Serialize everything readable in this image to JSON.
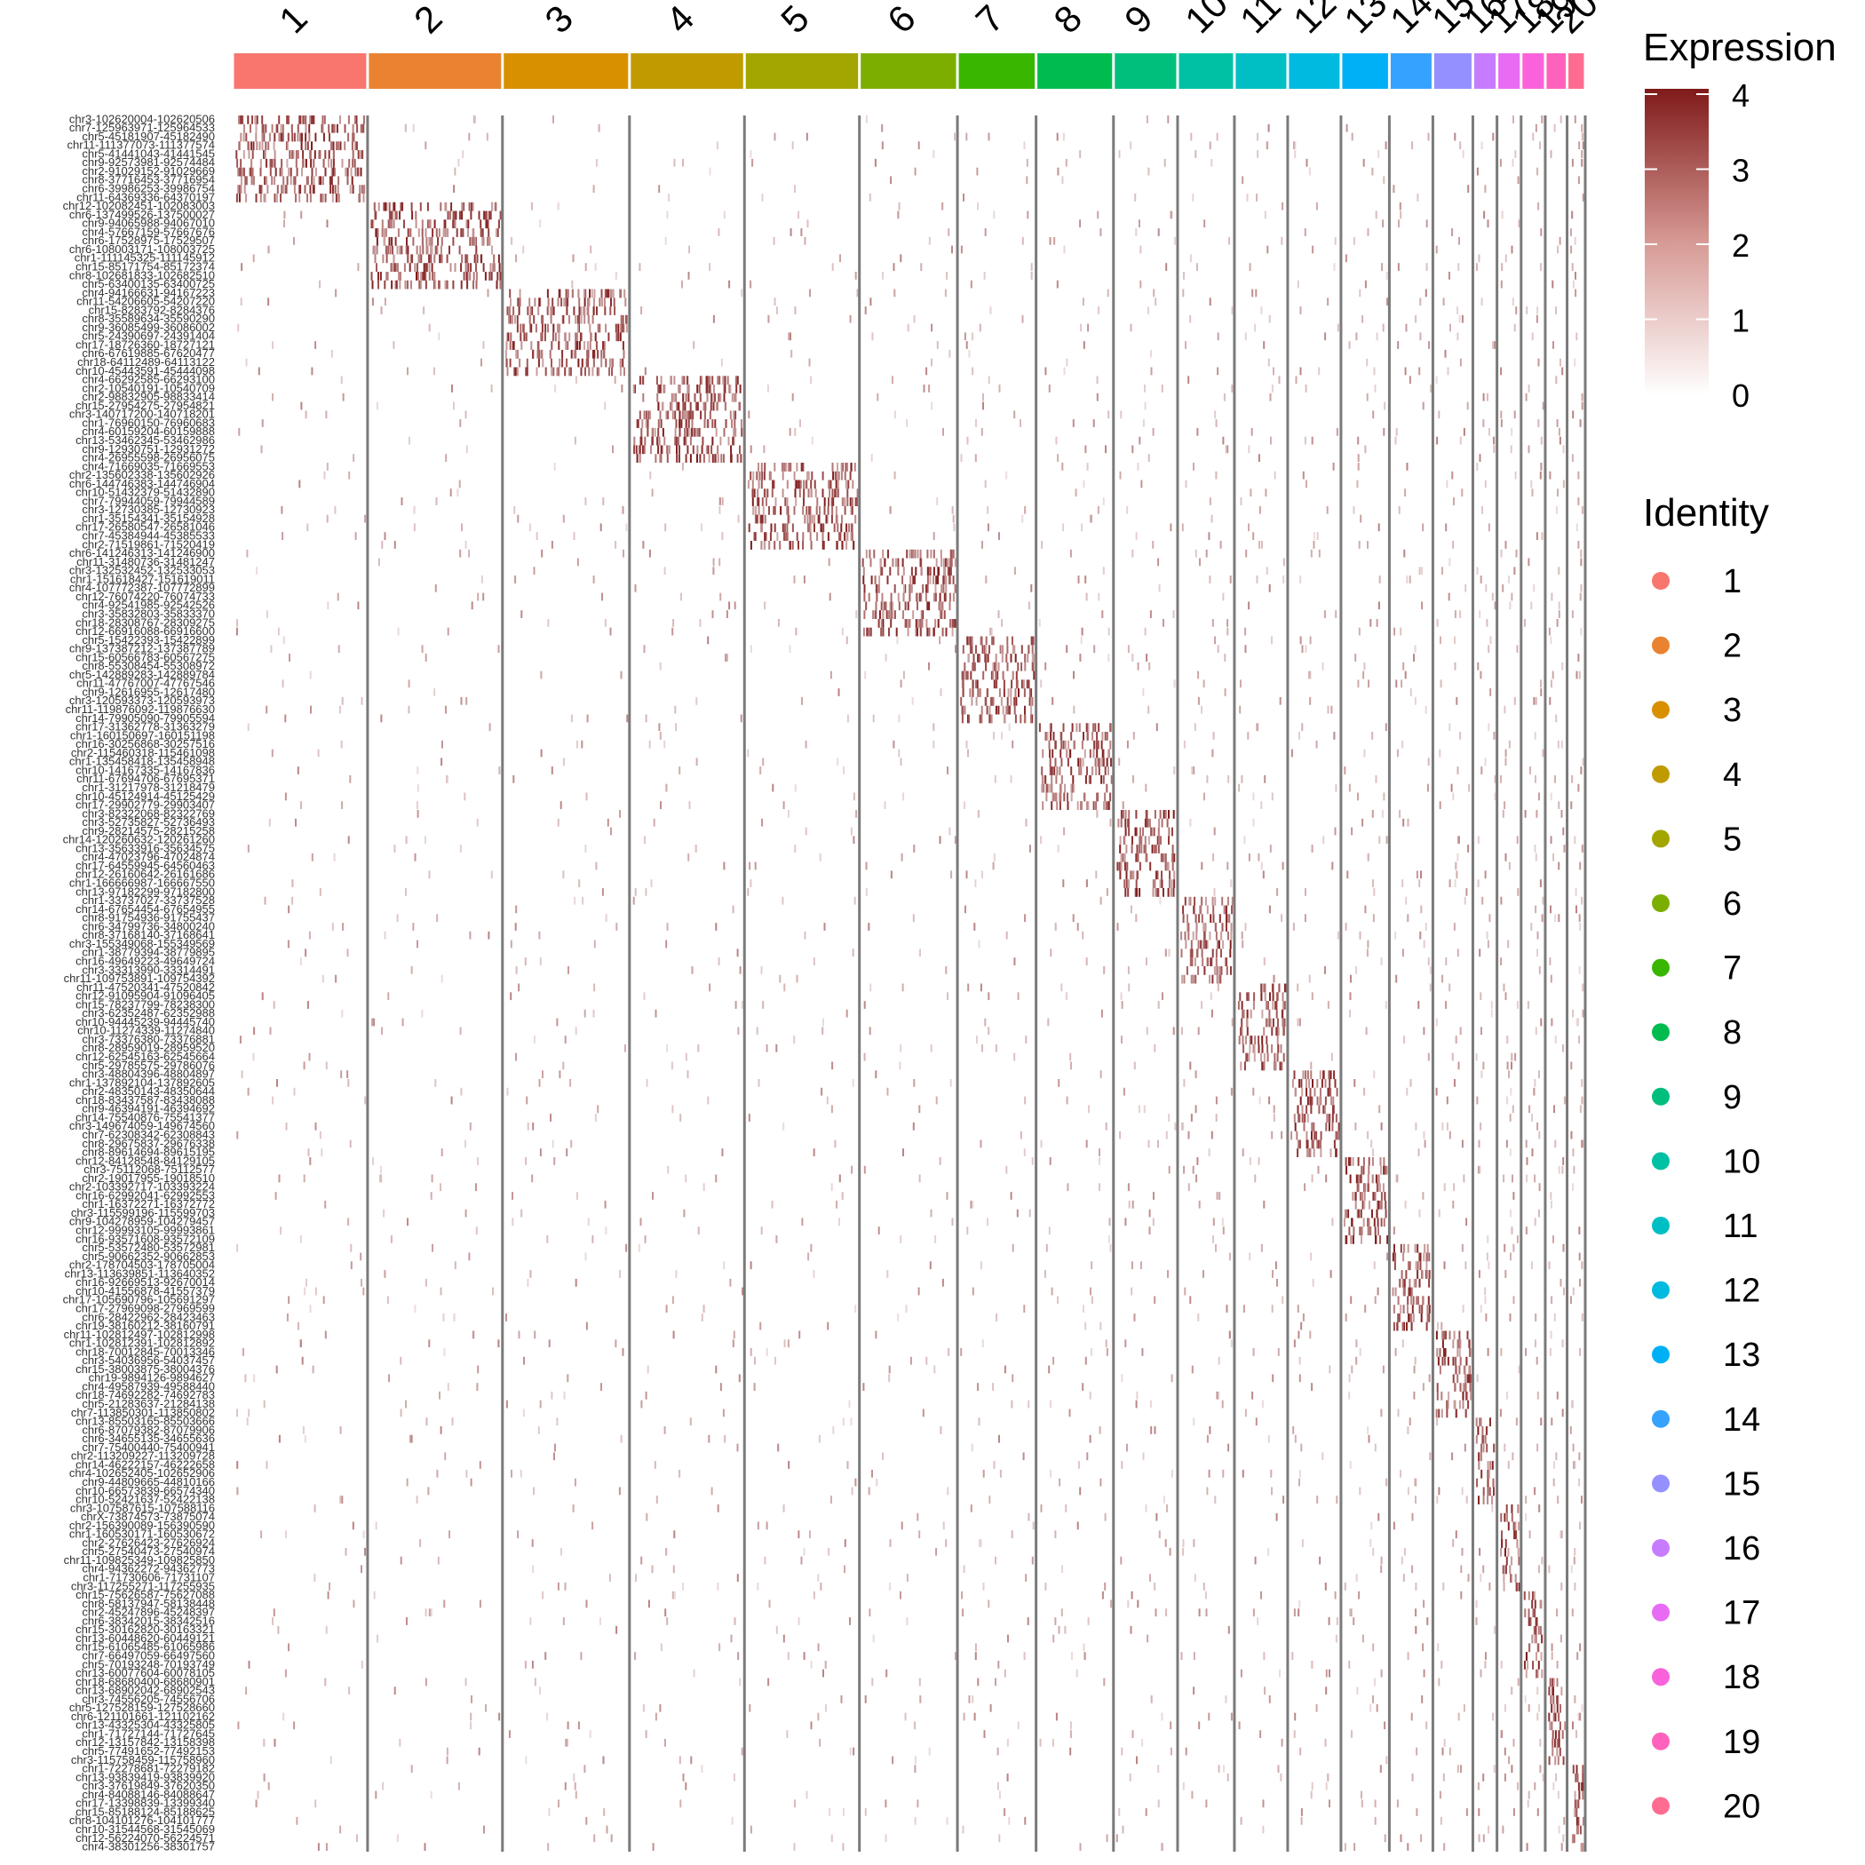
{
  "chart_data": {
    "type": "heatmap",
    "title": "",
    "xlabel": "",
    "ylabel": "",
    "clusters": [
      "1",
      "2",
      "3",
      "4",
      "5",
      "6",
      "7",
      "8",
      "9",
      "10",
      "11",
      "12",
      "13",
      "14",
      "15",
      "16",
      "17",
      "18",
      "19",
      "20"
    ],
    "cluster_colors": [
      "#F8766D",
      "#EA8331",
      "#D89000",
      "#C09B00",
      "#A3A500",
      "#7CAE00",
      "#39B600",
      "#00BB4E",
      "#00BF7D",
      "#00C1A3",
      "#00BFC4",
      "#00BAE0",
      "#00B0F6",
      "#35A2FF",
      "#9590FF",
      "#C77CFF",
      "#E76BF3",
      "#FA62DB",
      "#FF62BC",
      "#FF6C91"
    ],
    "cluster_cell_fractions": [
      0.0995,
      0.0995,
      0.0937,
      0.0848,
      0.0848,
      0.0723,
      0.058,
      0.0571,
      0.0473,
      0.0419,
      0.0393,
      0.0393,
      0.0357,
      0.0321,
      0.0295,
      0.0178,
      0.0178,
      0.0178,
      0.0161,
      0.0134
    ],
    "features_per_cluster": 10,
    "features": [
      "chr3-102620004-102620506",
      "chr7-125963971-125964533",
      "chr5-45181907-45182490",
      "chr11-111377073-111377574",
      "chr5-41441043-41441545",
      "chr9-92573981-92574484",
      "chr2-91029152-91029669",
      "chr8-37716453-37716954",
      "chr6-39986253-39986754",
      "chr11-64369336-64370197",
      "chr12-102082451-102083003",
      "chr6-137499526-137500027",
      "chr9-94065988-94067010",
      "chr4-57667159-57667676",
      "chr6-17528975-17529507",
      "chr6-108003171-108003725",
      "chr1-111145325-111145912",
      "chr15-85171754-85172374",
      "chr8-102681833-102682510",
      "chr5-63400135-63400725",
      "chr4-94166631-94167223",
      "chr11-54206605-54207220",
      "chr15-8283792-8284376",
      "chr8-35589634-35590290",
      "chr9-36085499-36086002",
      "chr5-24390697-24391404",
      "chr17-18726360-18727121",
      "chr6-67619885-67620477",
      "chr18-64112489-64113122",
      "chr10-45443591-45444098",
      "chr4-66292585-66293100",
      "chr2-10540191-10540709",
      "chr2-98832905-98833414",
      "chr15-27954275-27954821",
      "chr3-140717200-140718201",
      "chr1-76960150-76960683",
      "chr4-60159204-60159888",
      "chr13-53462345-53462986",
      "chr9-12930751-12931272",
      "chr4-26955598-26956075",
      "chr4-71669035-71669553",
      "chr2-135602338-135602926",
      "chr6-144746383-144746904",
      "chr10-51432379-51432890",
      "chr7-79944059-79944589",
      "chr3-12730385-12730923",
      "chr1-35154341-35154928",
      "chr17-26580547-26581046",
      "chr7-45384944-45385533",
      "chr2-71519861-71520419",
      "chr6-141246313-141246900",
      "chr11-31480736-31481247",
      "chr3-132532452-132533053",
      "chr1-151618427-151619011",
      "chr4-107772387-107772899",
      "chr12-76074220-76074733",
      "chr4-92541985-92542526",
      "chr3-35832803-35833370",
      "chr18-28308767-28309275",
      "chr12-66916088-66916600",
      "chr5-15422393-15422899",
      "chr9-137387212-137387789",
      "chr15-60566783-60567275",
      "chr8-55308454-55308972",
      "chr5-142889283-142889784",
      "chr11-47767007-47767546",
      "chr9-12616955-12617480",
      "chr3-120593373-120593973",
      "chr11-119876092-119876630",
      "chr14-79905090-79905594",
      "chr17-31362778-31363279",
      "chr1-160150697-160151198",
      "chr16-30256868-30257516",
      "chr2-115460318-115461098",
      "chr1-135458418-135458948",
      "chr10-14167335-14167836",
      "chr11-67694706-67695371",
      "chr1-31217978-31218479",
      "chr10-45124914-45125429",
      "chr17-29902779-29903407",
      "chr3-82322068-82322769",
      "chr3-52735827-52736493",
      "chr9-28214575-28215258",
      "chr14-120260632-120261260",
      "chr13-35633916-35634575",
      "chr4-47023796-47024874",
      "chr17-64559945-64560463",
      "chr12-26160642-26161686",
      "chr1-166666987-166667550",
      "chr13-97182299-97182800",
      "chr1-33737027-33737528",
      "chr14-67654454-67654955",
      "chr8-91754936-91755437",
      "chr6-34799736-34800240",
      "chr8-37168140-37168641",
      "chr3-155349068-155349569",
      "chr1-38779394-38779895",
      "chr16-49649223-49649724",
      "chr3-33313990-33314491",
      "chr11-109753891-109754392",
      "chr11-47520341-47520842",
      "chr12-91095904-91096405",
      "chr15-78237799-78238300",
      "chr3-62352487-62352988",
      "chr10-94445239-94445740",
      "chr10-11274339-11274840",
      "chr3-73376380-73376881",
      "chr8-28959019-28959520",
      "chr12-62545163-62545664",
      "chr5-29785575-29786076",
      "chr3-48804396-48804897",
      "chr1-137892104-137892605",
      "chr2-48350143-48350644",
      "chr18-83437587-83438088",
      "chr9-46394191-46394692",
      "chr14-75540876-75541377",
      "chr3-149674059-149674560",
      "chr7-62308342-62308843",
      "chr8-29675837-29676338",
      "chr8-89614694-89615195",
      "chr12-84128548-84129105",
      "chr3-75112068-75112577",
      "chr2-19017955-19018510",
      "chr2-103392717-103393224",
      "chr16-62992041-62992553",
      "chr1-16372271-16372772",
      "chr3-115599196-115599703",
      "chr9-104278959-104279457",
      "chr12-99993105-99993861",
      "chr16-93571608-93572109",
      "chr5-53572480-53572981",
      "chr5-90662352-90662853",
      "chr2-178704503-178705004",
      "chr13-113639851-113640352",
      "chr16-92669513-92670014",
      "chr10-41556878-41557379",
      "chr17-105690796-105691297",
      "chr17-27969098-27969599",
      "chr6-28422962-28423463",
      "chr19-38160212-38160791",
      "chr11-102812497-102812998",
      "chr1-102812391-102812892",
      "chr18-70012845-70013346",
      "chr3-54036956-54037457",
      "chr15-38003875-38004376",
      "chr19-9894126-9894627",
      "chr4-49587939-49588440",
      "chr18-74692282-74692783",
      "chr5-21283637-21284138",
      "chr7-113850301-113850802",
      "chr13-85503165-85503666",
      "chr6-87079382-87079906",
      "chr6-34655135-34655636",
      "chr7-75400440-75400941",
      "chr2-113209227-113209728",
      "chr14-46222157-46222658",
      "chr4-102652405-102652906",
      "chr9-44809665-44810166",
      "chr10-66573839-66574340",
      "chr10-52421637-52422138",
      "chr3-107587615-107588116",
      "chrX-73874573-73875074",
      "chr2-156390089-156390590",
      "chr1-160530171-160530672",
      "chr2-27626423-27626924",
      "chr5-27540473-27540974",
      "chr11-109825349-109825850",
      "chr4-94362272-94362773",
      "chr1-71730606-71731107",
      "chr3-117255271-117255935",
      "chr15-75626587-75627088",
      "chr8-58137947-58138448",
      "chr2-45247896-45248397",
      "chr6-38342015-38342516",
      "chr15-30162820-30163321",
      "chr13-60448620-60449121",
      "chr15-61065485-61065986",
      "chr7-66497059-66497560",
      "chr5-70193248-70193749",
      "chr13-60077604-60078105",
      "chr18-68680400-68680901",
      "chr13-68902042-68902543",
      "chr3-74556205-74556706",
      "chr5-127528159-127528660",
      "chr6-121101661-121102162",
      "chr13-43325304-43325805",
      "chr1-71727144-71727645",
      "chr12-13157842-13158398",
      "chr5-77491652-77492153",
      "chr3-115758459-115758960",
      "chr1-72278681-72279182",
      "chr13-93839419-93839920",
      "chr3-37619849-37620350",
      "chr4-84088146-84088647",
      "chr17-13398839-13399340",
      "chr15-85188124-85188625",
      "chr8-104101276-104101777",
      "chr10-31544568-31545069",
      "chr12-56224070-56224571",
      "chr4-38301256-38301757"
    ],
    "axis_x_labels": [
      "1",
      "2",
      "3",
      "4",
      "5",
      "6",
      "7",
      "8",
      "9",
      "10",
      "11",
      "12",
      "13",
      "14",
      "15",
      "16",
      "17",
      "18",
      "19",
      "20"
    ],
    "legend_expression": {
      "title": "Expression",
      "ticks": [
        0,
        1,
        2,
        3,
        4
      ],
      "low_color": "#FFFFFF",
      "high_color": "#7F1A1A"
    },
    "legend_identity": {
      "title": "Identity",
      "labels": [
        "1",
        "2",
        "3",
        "4",
        "5",
        "6",
        "7",
        "8",
        "9",
        "10",
        "11",
        "12",
        "13",
        "14",
        "15",
        "16",
        "17",
        "18",
        "19",
        "20"
      ]
    },
    "value_range": [
      0,
      4
    ],
    "grid": false,
    "legend_position": "right"
  }
}
